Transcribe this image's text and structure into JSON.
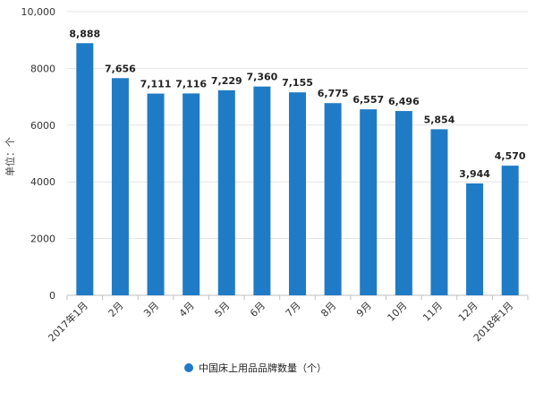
{
  "chart_data": {
    "type": "bar",
    "categories": [
      "2017年1月",
      "2月",
      "3月",
      "4月",
      "5月",
      "6月",
      "7月",
      "8月",
      "9月",
      "10月",
      "11月",
      "12月",
      "2018年1月"
    ],
    "series": [
      {
        "name": "中国床上用品品牌数量（个）",
        "values": [
          8888,
          7656,
          7111,
          7116,
          7229,
          7360,
          7155,
          6775,
          6557,
          6496,
          5854,
          3944,
          4570
        ]
      }
    ],
    "data_labels": [
      "8,888",
      "7,656",
      "7,111",
      "7,116",
      "7,229",
      "7,360",
      "7,155",
      "6,775",
      "6,557",
      "6,496",
      "5,854",
      "3,944",
      "4,570"
    ],
    "yticks": [
      0,
      2000,
      4000,
      6000,
      8000,
      10000
    ],
    "ytick_labels": [
      "0",
      "2000",
      "4000",
      "6000",
      "8000",
      "10,000"
    ],
    "ylim": [
      0,
      10000
    ],
    "ylabel": "单位：个",
    "grid": true,
    "legend_position": "bottom",
    "bar_color": "#1f7bc6"
  }
}
